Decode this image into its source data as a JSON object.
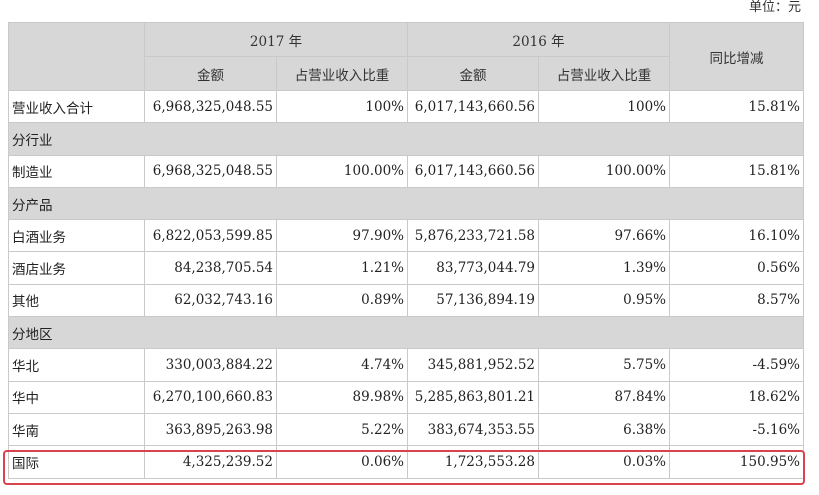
{
  "unit_label": "单位：元",
  "headers": {
    "year_2017": "2017 年",
    "year_2016": "2016 年",
    "amount": "金额",
    "share": "占营业收入比重",
    "yoy": "同比增减"
  },
  "total": {
    "label": "营业收入合计",
    "amt2017": "6,968,325,048.55",
    "pct2017": "100%",
    "amt2016": "6,017,143,660.56",
    "pct2016": "100%",
    "yoy": "15.81%"
  },
  "sec_industry": "分行业",
  "row_manufacturing": {
    "label": "制造业",
    "amt2017": "6,968,325,048.55",
    "pct2017": "100.00%",
    "amt2016": "6,017,143,660.56",
    "pct2016": "100.00%",
    "yoy": "15.81%"
  },
  "sec_product": "分产品",
  "row_liquor": {
    "label": "白酒业务",
    "amt2017": "6,822,053,599.85",
    "pct2017": "97.90%",
    "amt2016": "5,876,233,721.58",
    "pct2016": "97.66%",
    "yoy": "16.10%"
  },
  "row_hotel": {
    "label": "酒店业务",
    "amt2017": "84,238,705.54",
    "pct2017": "1.21%",
    "amt2016": "83,773,044.79",
    "pct2016": "1.39%",
    "yoy": "0.56%"
  },
  "row_other": {
    "label": "其他",
    "amt2017": "62,032,743.16",
    "pct2017": "0.89%",
    "amt2016": "57,136,894.19",
    "pct2016": "0.95%",
    "yoy": "8.57%"
  },
  "sec_region": "分地区",
  "row_north": {
    "label": "华北",
    "amt2017": "330,003,884.22",
    "pct2017": "4.74%",
    "amt2016": "345,881,952.52",
    "pct2016": "5.75%",
    "yoy": "-4.59%"
  },
  "row_central": {
    "label": "华中",
    "amt2017": "6,270,100,660.83",
    "pct2017": "89.98%",
    "amt2016": "5,285,863,801.21",
    "pct2016": "87.84%",
    "yoy": "18.62%"
  },
  "row_south": {
    "label": "华南",
    "amt2017": "363,895,263.98",
    "pct2017": "5.22%",
    "amt2016": "383,674,353.55",
    "pct2016": "6.38%",
    "yoy": "-5.16%"
  },
  "row_intl": {
    "label": "国际",
    "amt2017": "4,325,239.52",
    "pct2017": "0.06%",
    "amt2016": "1,723,553.28",
    "pct2016": "0.03%",
    "yoy": "150.95%"
  },
  "highlight_color": "#d9434d"
}
